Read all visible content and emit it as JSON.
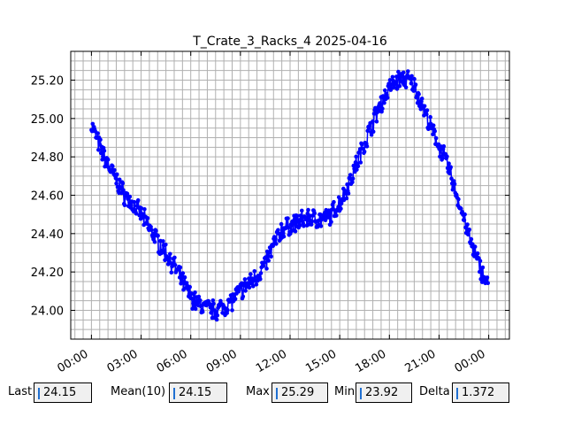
{
  "chart_data": {
    "type": "scatter",
    "title": "T_Crate_3_Racks_4 2025-04-16",
    "xlabel": "",
    "ylabel": "",
    "x_ticks": [
      "00:00",
      "03:00",
      "06:00",
      "09:00",
      "12:00",
      "15:00",
      "18:00",
      "21:00",
      "00:00"
    ],
    "x_tick_hours": [
      0,
      3,
      6,
      9,
      12,
      15,
      18,
      21,
      24
    ],
    "y_ticks": [
      "24.00",
      "24.20",
      "24.40",
      "24.60",
      "24.80",
      "25.00",
      "25.20"
    ],
    "y_tick_values": [
      24.0,
      24.2,
      24.4,
      24.6,
      24.8,
      25.0,
      25.2
    ],
    "xlim_hours": [
      -1.25,
      25.25
    ],
    "ylim": [
      23.85,
      25.35
    ],
    "grid": true,
    "line_color": "#0000ff",
    "series": [
      {
        "x_hours": [
          0.0,
          0.5,
          1.0,
          1.5,
          2.0,
          2.5,
          3.0,
          3.5,
          4.0,
          4.5,
          5.0,
          5.5,
          6.0,
          6.5,
          7.0,
          7.5,
          8.0,
          8.5,
          9.0,
          9.5,
          10.0,
          10.5,
          11.0,
          11.5,
          12.0,
          12.5,
          13.0,
          13.5,
          14.0,
          14.5,
          15.0,
          15.5,
          16.0,
          16.5,
          17.0,
          17.5,
          18.0,
          18.5,
          19.0,
          19.5,
          20.0,
          20.5,
          21.0,
          21.5,
          22.0,
          22.5,
          23.0,
          23.5,
          23.95
        ],
        "values": [
          24.97,
          24.85,
          24.76,
          24.68,
          24.6,
          24.55,
          24.5,
          24.43,
          24.36,
          24.3,
          24.23,
          24.15,
          24.07,
          24.03,
          24.01,
          24.0,
          24.02,
          24.05,
          24.1,
          24.14,
          24.18,
          24.24,
          24.34,
          24.42,
          24.44,
          24.46,
          24.48,
          24.48,
          24.47,
          24.5,
          24.56,
          24.65,
          24.76,
          24.87,
          24.98,
          25.08,
          25.16,
          25.2,
          25.21,
          25.17,
          25.07,
          24.95,
          24.86,
          24.76,
          24.62,
          24.48,
          24.33,
          24.22,
          24.13
        ]
      }
    ]
  },
  "stats": {
    "last_label": "Last",
    "last_value": "24.15",
    "mean_label": "Mean(10)",
    "mean_value": "24.15",
    "max_label": "Max",
    "max_value": "25.29",
    "min_label": "Min",
    "min_value": "23.92",
    "delta_label": "Delta",
    "delta_value": "1.372"
  }
}
